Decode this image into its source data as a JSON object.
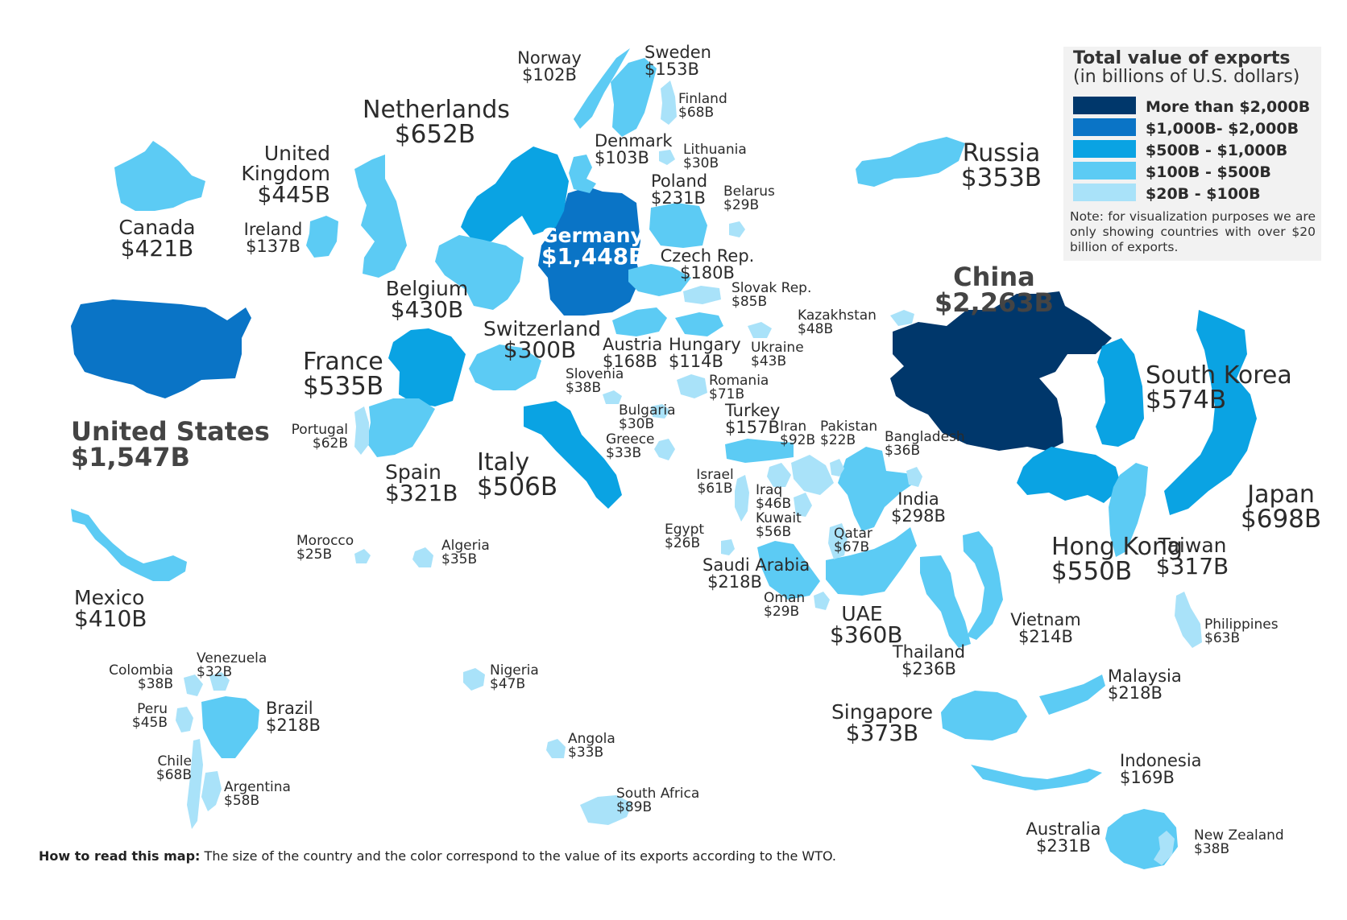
{
  "legend": {
    "title": "Total value of exports",
    "subtitle": "(in billions of U.S. dollars)",
    "items": [
      {
        "label": "More than $2,000B",
        "color": "#00376b"
      },
      {
        "label": "$1,000B- $2,000B",
        "color": "#0a74c6"
      },
      {
        "label": "$500B - $1,000B",
        "color": "#0aa3e3"
      },
      {
        "label": "$100B - $500B",
        "color": "#5ccbf4"
      },
      {
        "label": "$20B - $100B",
        "color": "#a9e2f9"
      }
    ],
    "note": "Note: for visualization purposes we are only showing countries with over $20 billion of exports."
  },
  "footnote": {
    "bold": "How to read this map:",
    "text": " The size of the country and the color correspond to the value of its exports according to the WTO."
  },
  "countries": [
    {
      "key": "china",
      "name": "China",
      "value": "$2,263B",
      "tier": 0
    },
    {
      "key": "united-states",
      "name": "United States",
      "value": "$1,547B",
      "tier": 1
    },
    {
      "key": "germany",
      "name": "Germany",
      "value": "$1,448B",
      "tier": 1
    },
    {
      "key": "japan",
      "name": "Japan",
      "value": "$698B",
      "tier": 2
    },
    {
      "key": "netherlands",
      "name": "Netherlands",
      "value": "$652B",
      "tier": 2
    },
    {
      "key": "south-korea",
      "name": "South Korea",
      "value": "$574B",
      "tier": 2
    },
    {
      "key": "hong-kong",
      "name": "Hong Kong",
      "value": "$550B",
      "tier": 2
    },
    {
      "key": "france",
      "name": "France",
      "value": "$535B",
      "tier": 2
    },
    {
      "key": "italy",
      "name": "Italy",
      "value": "$506B",
      "tier": 2
    },
    {
      "key": "united-kingdom",
      "name": "United Kingdom",
      "value": "$445B",
      "tier": 3
    },
    {
      "key": "belgium",
      "name": "Belgium",
      "value": "$430B",
      "tier": 3
    },
    {
      "key": "canada",
      "name": "Canada",
      "value": "$421B",
      "tier": 3
    },
    {
      "key": "mexico",
      "name": "Mexico",
      "value": "$410B",
      "tier": 3
    },
    {
      "key": "singapore",
      "name": "Singapore",
      "value": "$373B",
      "tier": 3
    },
    {
      "key": "uae",
      "name": "UAE",
      "value": "$360B",
      "tier": 3
    },
    {
      "key": "russia",
      "name": "Russia",
      "value": "$353B",
      "tier": 3
    },
    {
      "key": "spain",
      "name": "Spain",
      "value": "$321B",
      "tier": 3
    },
    {
      "key": "taiwan",
      "name": "Taiwan",
      "value": "$317B",
      "tier": 3
    },
    {
      "key": "switzerland",
      "name": "Switzerland",
      "value": "$300B",
      "tier": 3
    },
    {
      "key": "india",
      "name": "India",
      "value": "$298B",
      "tier": 3
    },
    {
      "key": "thailand",
      "name": "Thailand",
      "value": "$236B",
      "tier": 3
    },
    {
      "key": "poland",
      "name": "Poland",
      "value": "$231B",
      "tier": 3
    },
    {
      "key": "australia",
      "name": "Australia",
      "value": "$231B",
      "tier": 3
    },
    {
      "key": "saudi-arabia",
      "name": "Saudi Arabia",
      "value": "$218B",
      "tier": 3
    },
    {
      "key": "malaysia",
      "name": "Malaysia",
      "value": "$218B",
      "tier": 3
    },
    {
      "key": "brazil",
      "name": "Brazil",
      "value": "$218B",
      "tier": 3
    },
    {
      "key": "vietnam",
      "name": "Vietnam",
      "value": "$214B",
      "tier": 3
    },
    {
      "key": "czech-rep",
      "name": "Czech Rep.",
      "value": "$180B",
      "tier": 3
    },
    {
      "key": "indonesia",
      "name": "Indonesia",
      "value": "$169B",
      "tier": 3
    },
    {
      "key": "austria",
      "name": "Austria",
      "value": "$168B",
      "tier": 3
    },
    {
      "key": "turkey",
      "name": "Turkey",
      "value": "$157B",
      "tier": 3
    },
    {
      "key": "sweden",
      "name": "Sweden",
      "value": "$153B",
      "tier": 3
    },
    {
      "key": "ireland",
      "name": "Ireland",
      "value": "$137B",
      "tier": 3
    },
    {
      "key": "hungary",
      "name": "Hungary",
      "value": "$114B",
      "tier": 3
    },
    {
      "key": "denmark",
      "name": "Denmark",
      "value": "$103B",
      "tier": 3
    },
    {
      "key": "norway",
      "name": "Norway",
      "value": "$102B",
      "tier": 3
    },
    {
      "key": "iran",
      "name": "Iran",
      "value": "$92B",
      "tier": 4
    },
    {
      "key": "south-africa",
      "name": "South Africa",
      "value": "$89B",
      "tier": 4
    },
    {
      "key": "slovak-rep",
      "name": "Slovak Rep.",
      "value": "$85B",
      "tier": 4
    },
    {
      "key": "romania",
      "name": "Romania",
      "value": "$71B",
      "tier": 4
    },
    {
      "key": "finland",
      "name": "Finland",
      "value": "$68B",
      "tier": 4
    },
    {
      "key": "chile",
      "name": "Chile",
      "value": "$68B",
      "tier": 4
    },
    {
      "key": "qatar",
      "name": "Qatar",
      "value": "$67B",
      "tier": 4
    },
    {
      "key": "philippines",
      "name": "Philippines",
      "value": "$63B",
      "tier": 4
    },
    {
      "key": "portugal",
      "name": "Portugal",
      "value": "$62B",
      "tier": 4
    },
    {
      "key": "israel",
      "name": "Israel",
      "value": "$61B",
      "tier": 4
    },
    {
      "key": "argentina",
      "name": "Argentina",
      "value": "$58B",
      "tier": 4
    },
    {
      "key": "kuwait",
      "name": "Kuwait",
      "value": "$56B",
      "tier": 4
    },
    {
      "key": "kazakhstan",
      "name": "Kazakhstan",
      "value": "$48B",
      "tier": 4
    },
    {
      "key": "nigeria",
      "name": "Nigeria",
      "value": "$47B",
      "tier": 4
    },
    {
      "key": "iraq",
      "name": "Iraq",
      "value": "$46B",
      "tier": 4
    },
    {
      "key": "peru",
      "name": "Peru",
      "value": "$45B",
      "tier": 4
    },
    {
      "key": "ukraine",
      "name": "Ukraine",
      "value": "$43B",
      "tier": 4
    },
    {
      "key": "slovenia",
      "name": "Slovenia",
      "value": "$38B",
      "tier": 4
    },
    {
      "key": "colombia",
      "name": "Colombia",
      "value": "$38B",
      "tier": 4
    },
    {
      "key": "new-zealand",
      "name": "New Zealand",
      "value": "$38B",
      "tier": 4
    },
    {
      "key": "bangladesh",
      "name": "Bangladesh",
      "value": "$36B",
      "tier": 4
    },
    {
      "key": "algeria",
      "name": "Algeria",
      "value": "$35B",
      "tier": 4
    },
    {
      "key": "greece",
      "name": "Greece",
      "value": "$33B",
      "tier": 4
    },
    {
      "key": "angola",
      "name": "Angola",
      "value": "$33B",
      "tier": 4
    },
    {
      "key": "venezuela",
      "name": "Venezuela",
      "value": "$32B",
      "tier": 4
    },
    {
      "key": "lithuania",
      "name": "Lithuania",
      "value": "$30B",
      "tier": 4
    },
    {
      "key": "bulgaria",
      "name": "Bulgaria",
      "value": "$30B",
      "tier": 4
    },
    {
      "key": "belarus",
      "name": "Belarus",
      "value": "$29B",
      "tier": 4
    },
    {
      "key": "oman",
      "name": "Oman",
      "value": "$29B",
      "tier": 4
    },
    {
      "key": "egypt",
      "name": "Egypt",
      "value": "$26B",
      "tier": 4
    },
    {
      "key": "morocco",
      "name": "Morocco",
      "value": "$25B",
      "tier": 4
    },
    {
      "key": "pakistan",
      "name": "Pakistan",
      "value": "$22B",
      "tier": 4
    }
  ]
}
